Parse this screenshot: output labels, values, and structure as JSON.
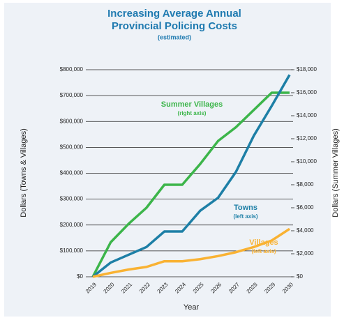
{
  "chart_data": {
    "type": "line",
    "title": [
      "Increasing Average Annual",
      "Provincial Policing Costs"
    ],
    "subtitle": "(estimated)",
    "x_label": "Year",
    "y_label": "Dollars (Towns & Villages)",
    "y2_label": "Dollars (Summer Villages)",
    "categories": [
      "2019",
      "2020",
      "2021",
      "2022",
      "2023",
      "2024",
      "2025",
      "2026",
      "2027",
      "2028",
      "2029",
      "2030"
    ],
    "series": [
      {
        "name": "Summer Villages",
        "color": "#3cb54a",
        "axis": "y2",
        "values": [
          0,
          3000,
          4600,
          6000,
          8000,
          8000,
          9800,
          11800,
          13000,
          14500,
          16000,
          16000
        ]
      },
      {
        "name": "Towns",
        "color": "#1d7fa6",
        "axis": "y",
        "values": [
          0,
          55000,
          85000,
          115000,
          175000,
          175000,
          255000,
          305000,
          405000,
          545000,
          660000,
          780000
        ]
      },
      {
        "name": "Villages",
        "color": "#f9b233",
        "axis": "y",
        "values": [
          0,
          15000,
          28000,
          38000,
          60000,
          60000,
          68000,
          80000,
          95000,
          115000,
          140000,
          185000
        ]
      }
    ],
    "annotations": [
      {
        "text": "Summer Villages",
        "note": "(right axis)"
      },
      {
        "text": "Towns",
        "note": "(left axis)"
      },
      {
        "text": "Villages",
        "note": "(left axis)"
      }
    ],
    "ylim": [
      0,
      800000
    ],
    "yticks": [
      {
        "value": 0,
        "label": "$0"
      },
      {
        "value": 100000,
        "label": "$100,000"
      },
      {
        "value": 200000,
        "label": "$200,000"
      },
      {
        "value": 300000,
        "label": "$300,000"
      },
      {
        "value": 400000,
        "label": "$400,000"
      },
      {
        "value": 500000,
        "label": "$500,000"
      },
      {
        "value": 600000,
        "label": "$600,000"
      },
      {
        "value": 700000,
        "label": "$700,000"
      },
      {
        "value": 800000,
        "label": "$800,000"
      }
    ],
    "y2lim": [
      0,
      18000
    ],
    "y2ticks": [
      {
        "value": 0,
        "label": "$0"
      },
      {
        "value": 2000,
        "label": "$2,000"
      },
      {
        "value": 4000,
        "label": "$4,000"
      },
      {
        "value": 6000,
        "label": "$6,000"
      },
      {
        "value": 8000,
        "label": "$8,000"
      },
      {
        "value": 10000,
        "label": "$10,000"
      },
      {
        "value": 12000,
        "label": "$12,000"
      },
      {
        "value": 14000,
        "label": "$14,000"
      },
      {
        "value": 16000,
        "label": "$16,000"
      },
      {
        "value": 18000,
        "label": "$18,000"
      }
    ],
    "grid": true
  }
}
